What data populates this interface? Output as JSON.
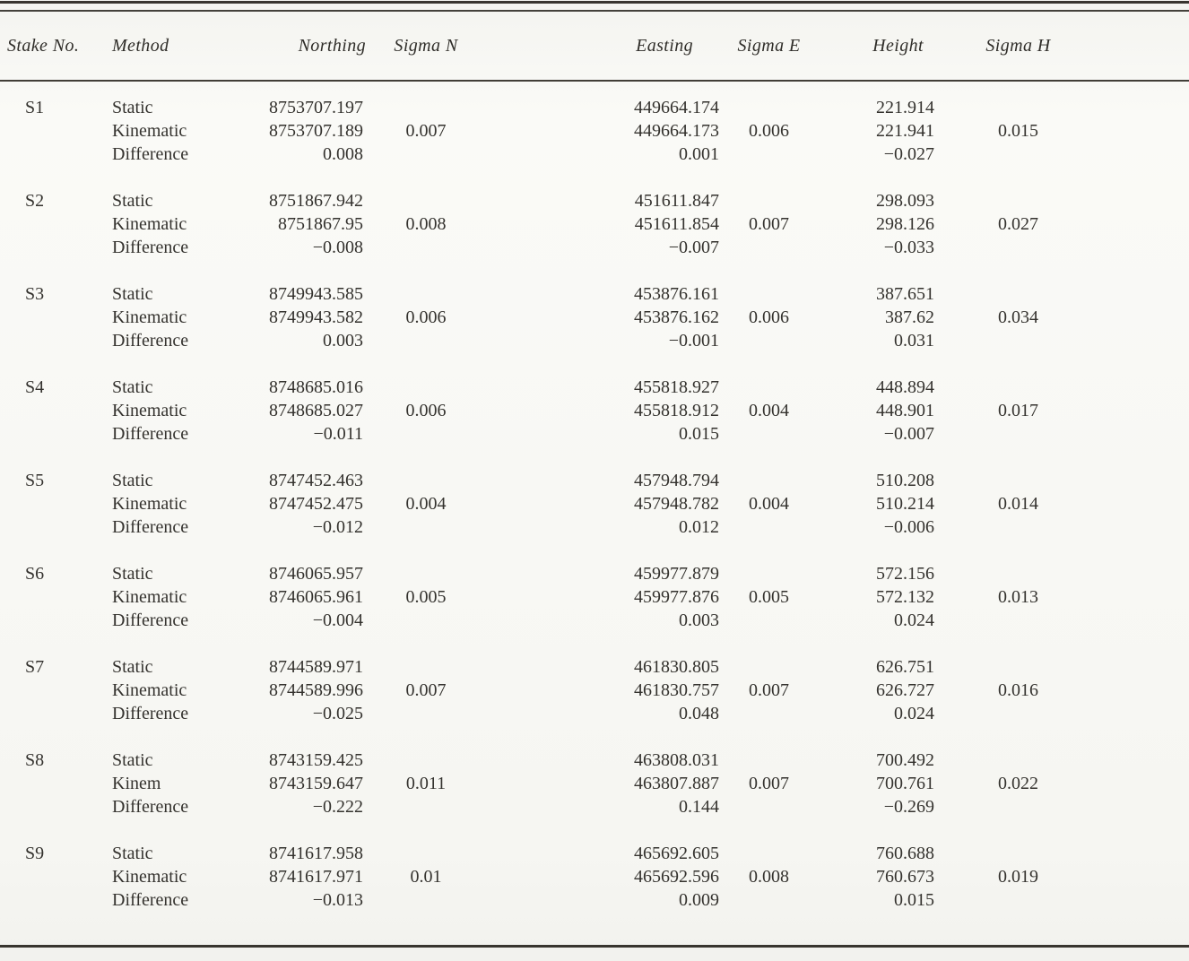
{
  "table": {
    "columns": [
      "Stake No.",
      "Method",
      "Northing",
      "Sigma N",
      "Easting",
      "Sigma E",
      "Height",
      "Sigma H"
    ],
    "groups": [
      {
        "stake": "S1",
        "rows": [
          {
            "method": "Static",
            "northing": "8753707.197",
            "sigma_n": "",
            "easting": "449664.174",
            "sigma_e": "",
            "height": "221.914",
            "sigma_h": ""
          },
          {
            "method": "Kinematic",
            "northing": "8753707.189",
            "sigma_n": "0.007",
            "easting": "449664.173",
            "sigma_e": "0.006",
            "height": "221.941",
            "sigma_h": "0.015"
          },
          {
            "method": "Difference",
            "northing": "0.008",
            "sigma_n": "",
            "easting": "0.001",
            "sigma_e": "",
            "height": "−0.027",
            "sigma_h": ""
          }
        ]
      },
      {
        "stake": "S2",
        "rows": [
          {
            "method": "Static",
            "northing": "8751867.942",
            "sigma_n": "",
            "easting": "451611.847",
            "sigma_e": "",
            "height": "298.093",
            "sigma_h": ""
          },
          {
            "method": "Kinematic",
            "northing": "8751867.95",
            "sigma_n": "0.008",
            "easting": "451611.854",
            "sigma_e": "0.007",
            "height": "298.126",
            "sigma_h": "0.027"
          },
          {
            "method": "Difference",
            "northing": "−0.008",
            "sigma_n": "",
            "easting": "−0.007",
            "sigma_e": "",
            "height": "−0.033",
            "sigma_h": ""
          }
        ]
      },
      {
        "stake": "S3",
        "rows": [
          {
            "method": "Static",
            "northing": "8749943.585",
            "sigma_n": "",
            "easting": "453876.161",
            "sigma_e": "",
            "height": "387.651",
            "sigma_h": ""
          },
          {
            "method": "Kinematic",
            "northing": "8749943.582",
            "sigma_n": "0.006",
            "easting": "453876.162",
            "sigma_e": "0.006",
            "height": "387.62",
            "sigma_h": "0.034"
          },
          {
            "method": "Difference",
            "northing": "0.003",
            "sigma_n": "",
            "easting": "−0.001",
            "sigma_e": "",
            "height": "0.031",
            "sigma_h": ""
          }
        ]
      },
      {
        "stake": "S4",
        "rows": [
          {
            "method": "Static",
            "northing": "8748685.016",
            "sigma_n": "",
            "easting": "455818.927",
            "sigma_e": "",
            "height": "448.894",
            "sigma_h": ""
          },
          {
            "method": "Kinematic",
            "northing": "8748685.027",
            "sigma_n": "0.006",
            "easting": "455818.912",
            "sigma_e": "0.004",
            "height": "448.901",
            "sigma_h": "0.017"
          },
          {
            "method": "Difference",
            "northing": "−0.011",
            "sigma_n": "",
            "easting": "0.015",
            "sigma_e": "",
            "height": "−0.007",
            "sigma_h": ""
          }
        ]
      },
      {
        "stake": "S5",
        "rows": [
          {
            "method": "Static",
            "northing": "8747452.463",
            "sigma_n": "",
            "easting": "457948.794",
            "sigma_e": "",
            "height": "510.208",
            "sigma_h": ""
          },
          {
            "method": "Kinematic",
            "northing": "8747452.475",
            "sigma_n": "0.004",
            "easting": "457948.782",
            "sigma_e": "0.004",
            "height": "510.214",
            "sigma_h": "0.014"
          },
          {
            "method": "Difference",
            "northing": "−0.012",
            "sigma_n": "",
            "easting": "0.012",
            "sigma_e": "",
            "height": "−0.006",
            "sigma_h": ""
          }
        ]
      },
      {
        "stake": "S6",
        "rows": [
          {
            "method": "Static",
            "northing": "8746065.957",
            "sigma_n": "",
            "easting": "459977.879",
            "sigma_e": "",
            "height": "572.156",
            "sigma_h": ""
          },
          {
            "method": "Kinematic",
            "northing": "8746065.961",
            "sigma_n": "0.005",
            "easting": "459977.876",
            "sigma_e": "0.005",
            "height": "572.132",
            "sigma_h": "0.013"
          },
          {
            "method": "Difference",
            "northing": "−0.004",
            "sigma_n": "",
            "easting": "0.003",
            "sigma_e": "",
            "height": "0.024",
            "sigma_h": ""
          }
        ]
      },
      {
        "stake": "S7",
        "rows": [
          {
            "method": "Static",
            "northing": "8744589.971",
            "sigma_n": "",
            "easting": "461830.805",
            "sigma_e": "",
            "height": "626.751",
            "sigma_h": ""
          },
          {
            "method": "Kinematic",
            "northing": "8744589.996",
            "sigma_n": "0.007",
            "easting": "461830.757",
            "sigma_e": "0.007",
            "height": "626.727",
            "sigma_h": "0.016"
          },
          {
            "method": "Difference",
            "northing": "−0.025",
            "sigma_n": "",
            "easting": "0.048",
            "sigma_e": "",
            "height": "0.024",
            "sigma_h": ""
          }
        ]
      },
      {
        "stake": "S8",
        "rows": [
          {
            "method": "Static",
            "northing": "8743159.425",
            "sigma_n": "",
            "easting": "463808.031",
            "sigma_e": "",
            "height": "700.492",
            "sigma_h": ""
          },
          {
            "method": "Kinem",
            "northing": "8743159.647",
            "sigma_n": "0.011",
            "easting": "463807.887",
            "sigma_e": "0.007",
            "height": "700.761",
            "sigma_h": "0.022"
          },
          {
            "method": "Difference",
            "northing": "−0.222",
            "sigma_n": "",
            "easting": "0.144",
            "sigma_e": "",
            "height": "−0.269",
            "sigma_h": ""
          }
        ]
      },
      {
        "stake": "S9",
        "rows": [
          {
            "method": "Static",
            "northing": "8741617.958",
            "sigma_n": "",
            "easting": "465692.605",
            "sigma_e": "",
            "height": "760.688",
            "sigma_h": ""
          },
          {
            "method": "Kinematic",
            "northing": "8741617.971",
            "sigma_n": "0.01",
            "easting": "465692.596",
            "sigma_e": "0.008",
            "height": "760.673",
            "sigma_h": "0.019"
          },
          {
            "method": "Difference",
            "northing": "−0.013",
            "sigma_n": "",
            "easting": "0.009",
            "sigma_e": "",
            "height": "0.015",
            "sigma_h": ""
          }
        ]
      }
    ]
  }
}
